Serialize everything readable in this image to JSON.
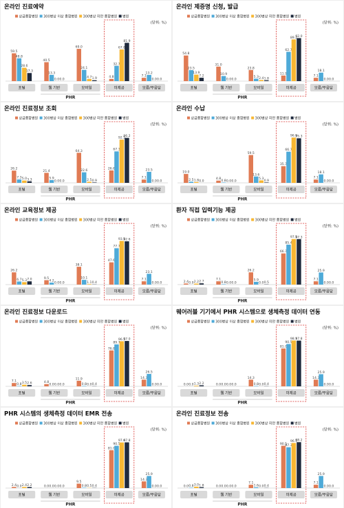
{
  "chart_data": [
    {
      "type": "bar",
      "title": "온라인 진료예약",
      "unit": "(단위: %)",
      "group_label": "PHR",
      "categories": [
        "포털",
        "웹 기반",
        "모바일",
        "미제공",
        "모름/무응답"
      ],
      "ylim": [
        0,
        100
      ],
      "series": [
        {
          "name": "상급종합병원",
          "color": "#e07b54",
          "values": [
            59.5,
            40.5,
            69.0,
            4.8,
            7.1
          ],
          "value_labels": [
            "59.5",
            "40.5",
            "69.0",
            "4.8",
            "7.1"
          ]
        },
        {
          "name": "300병상 이상 종합병원",
          "color": "#4eaad8",
          "values": [
            48.8,
            13.3,
            24.1,
            32.7,
            13.2
          ],
          "value_labels": [
            "48.8",
            "13.3",
            "24.1",
            "32.7",
            "13.2"
          ]
        },
        {
          "name": "300병상 미만 종합병원",
          "color": "#f7b733",
          "values": [
            28.6,
            0,
            4.7,
            67.8,
            0
          ],
          "value_labels": [
            "28.6",
            "0.0",
            "4.7",
            "67.8",
            "0.0"
          ]
        },
        {
          "name": "병원",
          "color": "#1f2a3d",
          "values": [
            17.3,
            0,
            1.9,
            81.9,
            0
          ],
          "value_labels": [
            "17.3",
            "0.0",
            "1.9",
            "81.9",
            "0.0"
          ]
        }
      ]
    },
    {
      "type": "bar",
      "title": "온라인 제증명 신청, 발급",
      "unit": "(단위: %)",
      "group_label": "PHR",
      "categories": [
        "포털",
        "웹 기반",
        "모바일",
        "미제공",
        "모름/무응답"
      ],
      "ylim": [
        0,
        100
      ],
      "series": [
        {
          "name": "상급종합병원",
          "color": "#e07b54",
          "values": [
            54.8,
            31.0,
            23.8,
            11.9,
            7.1
          ],
          "value_labels": [
            "54.8",
            "31.0",
            "23.8",
            "11.9",
            "7.1"
          ]
        },
        {
          "name": "300병상 이상 종합병원",
          "color": "#4eaad8",
          "values": [
            23.5,
            10.9,
            5.3,
            62.7,
            18.1
          ],
          "value_labels": [
            "23.5",
            "10.9",
            "5.3",
            "62.7",
            "18.1"
          ]
        },
        {
          "name": "300병상 미만 종합병원",
          "color": "#f7b733",
          "values": [
            13.9,
            0,
            2.4,
            89.2,
            0
          ],
          "value_labels": [
            "13.9",
            "0.0",
            "2.4",
            "89.2",
            "0.0"
          ]
        },
        {
          "name": "병원",
          "color": "#1f2a3d",
          "values": [
            7.2,
            0,
            1.8,
            92.0,
            0
          ],
          "value_labels": [
            "7.2",
            "0.0",
            "1.8",
            "92.0",
            "0.0"
          ]
        }
      ]
    },
    {
      "type": "bar",
      "title": "온라인 진료정보 조회",
      "unit": "(단위: %)",
      "group_label": "PHR",
      "categories": [
        "포털",
        "웹 기반",
        "모바일",
        "미제공",
        "모름/무응답"
      ],
      "ylim": [
        0,
        100
      ],
      "series": [
        {
          "name": "상급종합병원",
          "color": "#e07b54",
          "values": [
            26.2,
            21.4,
            64.3,
            26.6,
            7.1
          ],
          "value_labels": [
            "26.2",
            "21.4",
            "64.3",
            "26.6",
            "7.1"
          ]
        },
        {
          "name": "300병상 이상 종합병원",
          "color": "#4eaad8",
          "values": [
            7.3,
            5.9,
            22.6,
            67.3,
            23.5
          ],
          "value_labels": [
            "7.3",
            "5.9",
            "22.6",
            "67.3",
            "23.5"
          ]
        },
        {
          "name": "300병상 미만 종합병원",
          "color": "#f7b733",
          "values": [
            5.0,
            0,
            2.5,
            92.5,
            0
          ],
          "value_labels": [
            "5.0",
            "0.0",
            "2.5",
            "92.5",
            "0.0"
          ]
        },
        {
          "name": "병원",
          "color": "#1f2a3d",
          "values": [
            3.3,
            0,
            0.9,
            96.2,
            0
          ],
          "value_labels": [
            "3.3",
            "0.0",
            "0.9",
            "96.2",
            "0.0"
          ]
        }
      ]
    },
    {
      "type": "bar",
      "title": "온라인 수납",
      "unit": "(단위: %)",
      "group_label": "PHR",
      "categories": [
        "포털",
        "웹 기반",
        "모바일",
        "미제공",
        "모름/무응답"
      ],
      "ylim": [
        0,
        100
      ],
      "series": [
        {
          "name": "상급종합병원",
          "color": "#e07b54",
          "values": [
            19.0,
            4.8,
            59.5,
            35.7,
            7.1
          ],
          "value_labels": [
            "19.0",
            "4.8",
            "59.5",
            "35.7",
            "7.1"
          ]
        },
        {
          "name": "300병상 이상 종합병원",
          "color": "#4eaad8",
          "values": [
            2.5,
            0.8,
            13.6,
            66.7,
            18.1
          ],
          "value_labels": [
            "2.5",
            "0.8",
            "13.6",
            "66.7",
            "18.1"
          ]
        },
        {
          "name": "300병상 미만 종합병원",
          "color": "#f7b733",
          "values": [
            1.8,
            0,
            5.3,
            96.9,
            0
          ],
          "value_labels": [
            "1.8",
            "0.0",
            "5.3",
            "96.9",
            "0.0"
          ]
        },
        {
          "name": "병원",
          "color": "#1f2a3d",
          "values": [
            0,
            0,
            0.9,
            95.3,
            0
          ],
          "value_labels": [
            "0.0",
            "0.0",
            "0.9",
            "95.3",
            "0.0"
          ]
        }
      ]
    },
    {
      "type": "bar",
      "title": "온라인 교육정보 제공",
      "unit": "(단위: %)",
      "group_label": "PHR",
      "categories": [
        "포털",
        "웹 기반",
        "모바일",
        "미제공",
        "모름/무응답"
      ],
      "ylim": [
        0,
        100
      ],
      "series": [
        {
          "name": "상급종합병원",
          "color": "#e07b54",
          "values": [
            26.2,
            9.5,
            38.1,
            47.6,
            7.1
          ],
          "value_labels": [
            "26.2",
            "9.5",
            "38.1",
            "47.6",
            "7.1"
          ]
        },
        {
          "name": "300병상 이상 종합병원",
          "color": "#4eaad8",
          "values": [
            6.7,
            4.2,
            10.1,
            77.7,
            23.1
          ],
          "value_labels": [
            "6.7",
            "4.2",
            "10.1",
            "77.7",
            "23.1"
          ]
        },
        {
          "name": "300병상 미만 종합병원",
          "color": "#f7b733",
          "values": [
            5.3,
            0,
            1.1,
            93.5,
            0
          ],
          "value_labels": [
            "5.3",
            "0.0",
            "1.1",
            "93.5",
            "0.0"
          ]
        },
        {
          "name": "병원",
          "color": "#1f2a3d",
          "values": [
            7.0,
            0,
            0.4,
            92.6,
            0
          ],
          "value_labels": [
            "7.0",
            "0.0",
            "0.4",
            "92.6",
            "0.0"
          ]
        }
      ]
    },
    {
      "type": "bar",
      "title": "환자 직접 입력기능 제공",
      "unit": "(단위: %)",
      "group_label": "PHR",
      "categories": [
        "포털",
        "웹 기반",
        "모바일",
        "미제공",
        "모름/무응답"
      ],
      "ylim": [
        0,
        100
      ],
      "series": [
        {
          "name": "상급종합병원",
          "color": "#e07b54",
          "values": [
            2.4,
            7.1,
            26.2,
            66.7,
            7.1
          ],
          "value_labels": [
            "2.4",
            "7.1",
            "26.2",
            "66.7",
            "7.1"
          ]
        },
        {
          "name": "300병상 이상 종합병원",
          "color": "#4eaad8",
          "values": [
            0,
            0.8,
            5.9,
            85.4,
            25.9
          ],
          "value_labels": [
            "0.0",
            "0.8",
            "5.9",
            "85.4",
            "25.9"
          ]
        },
        {
          "name": "300병상 미만 종합병원",
          "color": "#f7b733",
          "values": [
            2.2,
            0,
            0,
            97.5,
            0
          ],
          "value_labels": [
            "2.2",
            "0.0",
            "0.0",
            "97.5",
            "0.0"
          ]
        },
        {
          "name": "병원",
          "color": "#1f2a3d",
          "values": [
            2.7,
            0,
            0.5,
            97.3,
            0
          ],
          "value_labels": [
            "2.7",
            "0.0",
            "0.5",
            "97.3",
            "0.0"
          ]
        }
      ]
    },
    {
      "type": "bar",
      "title": "온라인 진료정보 다운로드",
      "unit": "(단위: %)",
      "group_label": "PHR",
      "categories": [
        "포털",
        "웹 기반",
        "모바일",
        "미제공",
        "모름/무응답"
      ],
      "ylim": [
        0,
        100
      ],
      "series": [
        {
          "name": "상급종합병원",
          "color": "#e07b54",
          "values": [
            7.1,
            4.8,
            11.9,
            76.8,
            14.3
          ],
          "value_labels": [
            "7.1",
            "4.8",
            "11.9",
            "76.8",
            "14.3"
          ]
        },
        {
          "name": "300병상 이상 종합병원",
          "color": "#4eaad8",
          "values": [
            0.8,
            0,
            0.8,
            89.7,
            26.5
          ],
          "value_labels": [
            "0.8",
            "0.0",
            "0.8",
            "89.7",
            "26.5"
          ]
        },
        {
          "name": "300병상 미만 종합병원",
          "color": "#f7b733",
          "values": [
            3.5,
            0,
            0,
            96.5,
            0
          ],
          "value_labels": [
            "3.5",
            "0.0",
            "0.0",
            "96.5",
            "0.0"
          ]
        },
        {
          "name": "병원",
          "color": "#1f2a3d",
          "values": [
            2.6,
            0,
            0.4,
            97.0,
            0
          ],
          "value_labels": [
            "2.6",
            "0.0",
            "0.4",
            "97.0",
            "0.0"
          ]
        }
      ]
    },
    {
      "type": "bar",
      "title": "웨어러블 기기에서 PHR 시스템으로 생체측정 데이터 연동",
      "unit": "(단위: %)",
      "group_label": "PHR",
      "categories": [
        "포털",
        "웹 기반",
        "모바일",
        "미제공",
        "모름/무응답"
      ],
      "ylim": [
        0,
        100
      ],
      "series": [
        {
          "name": "상급종합병원",
          "color": "#e07b54",
          "values": [
            0,
            0,
            14.3,
            81.0,
            14.3
          ],
          "value_labels": [
            "0.0",
            "0.0",
            "14.3",
            "81.0",
            "14.3"
          ]
        },
        {
          "name": "300병상 이상 종합병원",
          "color": "#4eaad8",
          "values": [
            0,
            0,
            0.8,
            90.5,
            25.9
          ],
          "value_labels": [
            "0.0",
            "0.0",
            "0.8",
            "90.5",
            "25.9"
          ]
        },
        {
          "name": "300병상 미만 종합병원",
          "color": "#f7b733",
          "values": [
            1.3,
            0,
            0,
            98.1,
            0
          ],
          "value_labels": [
            "1.3",
            "0.0",
            "0.0",
            "98.1",
            "0.0"
          ]
        },
        {
          "name": "병원",
          "color": "#1f2a3d",
          "values": [
            2.2,
            0,
            0.4,
            97.8,
            0
          ],
          "value_labels": [
            "2.2",
            "0.0",
            "0.4",
            "97.8",
            "0.0"
          ]
        }
      ]
    },
    {
      "type": "bar",
      "title": "PHR 시스템의 생체측정 데이터 EMR 전송",
      "unit": "(단위: %)",
      "group_label": "PHR",
      "categories": [
        "포털",
        "웹 기반",
        "모바일",
        "미제공",
        "모름/무응답"
      ],
      "ylim": [
        0,
        100
      ],
      "series": [
        {
          "name": "상급종합병원",
          "color": "#e07b54",
          "values": [
            2.4,
            0,
            9.5,
            81.0,
            14.3
          ],
          "value_labels": [
            "2.4",
            "0.0",
            "9.5",
            "81.0",
            "14.3"
          ]
        },
        {
          "name": "300병상 이상 종합병원",
          "color": "#4eaad8",
          "values": [
            0,
            0,
            0.8,
            90.5,
            25.9
          ],
          "value_labels": [
            "0.0",
            "0.0",
            "0.8",
            "90.5",
            "25.9"
          ]
        },
        {
          "name": "300병상 미만 종합병원",
          "color": "#f7b733",
          "values": [
            2.4,
            0,
            0.5,
            97.6,
            0
          ],
          "value_labels": [
            "2.4",
            "0.0",
            "0.5",
            "97.6",
            "0.0"
          ]
        },
        {
          "name": "병원",
          "color": "#1f2a3d",
          "values": [
            2.2,
            0,
            0.4,
            97.8,
            0
          ],
          "value_labels": [
            "2.2",
            "0.0",
            "0.4",
            "97.8",
            "0.0"
          ]
        }
      ]
    },
    {
      "type": "bar",
      "title": "온라인 진료정보 전송",
      "unit": "(단위: %)",
      "group_label": "PHR",
      "categories": [
        "포털",
        "웹 기반",
        "모바일",
        "미제공",
        "모름/무응답"
      ],
      "ylim": [
        0,
        100
      ],
      "series": [
        {
          "name": "상급종합병원",
          "color": "#e07b54",
          "values": [
            0,
            0,
            7.1,
            90.5,
            7.1
          ],
          "value_labels": [
            "0.0",
            "0.0",
            "7.1",
            "90.5",
            "7.1"
          ]
        },
        {
          "name": "300병상 이상 종합병원",
          "color": "#4eaad8",
          "values": [
            0.8,
            0,
            1.6,
            87.3,
            25.9
          ],
          "value_labels": [
            "0.8",
            "0.0",
            "1.6",
            "87.3",
            "25.9"
          ]
        },
        {
          "name": "300병상 미만 종합병원",
          "color": "#f7b733",
          "values": [
            3.0,
            0,
            0,
            96.5,
            0
          ],
          "value_labels": [
            "3.0",
            "0.0",
            "0.0",
            "96.5",
            "0.0"
          ]
        },
        {
          "name": "병원",
          "color": "#1f2a3d",
          "values": [
            1.8,
            0,
            0.4,
            98.2,
            0
          ],
          "value_labels": [
            "1.8",
            "0.0",
            "0.4",
            "98.2",
            "0.0"
          ]
        }
      ]
    }
  ]
}
